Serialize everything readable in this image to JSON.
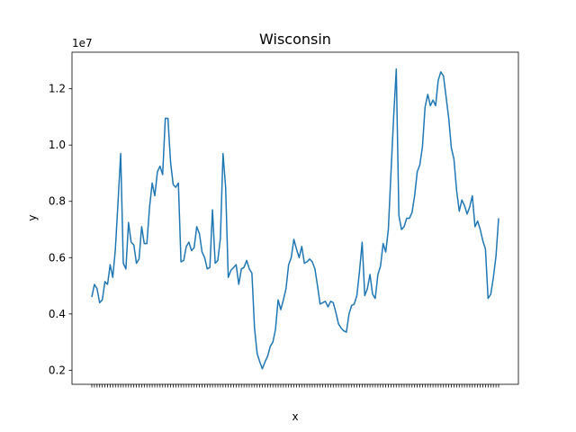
{
  "chart_data": {
    "type": "line",
    "title": "Wisconsin",
    "xlabel": "x",
    "ylabel": "y",
    "y_scale_label": "1e7",
    "ylim": [
      1500000,
      13300000
    ],
    "yticks": [
      2000000,
      4000000,
      6000000,
      8000000,
      10000000,
      12000000
    ],
    "ytick_labels": [
      "0.2",
      "0.4",
      "0.6",
      "0.8",
      "1.0",
      "1.2"
    ],
    "grid": false,
    "line_color": "#1f77b4",
    "series": [
      {
        "values": [
          4600000,
          5050000,
          4900000,
          4400000,
          4500000,
          5150000,
          5050000,
          5750000,
          5300000,
          6300000,
          8000000,
          9700000,
          5800000,
          5600000,
          7250000,
          6550000,
          6450000,
          5800000,
          5950000,
          7100000,
          6500000,
          6500000,
          7800000,
          8650000,
          8200000,
          9050000,
          9250000,
          8950000,
          10950000,
          10950000,
          9400000,
          8600000,
          8500000,
          8650000,
          5850000,
          5900000,
          6400000,
          6550000,
          6250000,
          6350000,
          7100000,
          6850000,
          6200000,
          6000000,
          5600000,
          5650000,
          7700000,
          5800000,
          5900000,
          6700000,
          9700000,
          8500000,
          5300000,
          5550000,
          5650000,
          5750000,
          5050000,
          5600000,
          5650000,
          5900000,
          5600000,
          5450000,
          3500000,
          2600000,
          2300000,
          2050000,
          2300000,
          2500000,
          2850000,
          3000000,
          3450000,
          4500000,
          4150000,
          4500000,
          4900000,
          5750000,
          6000000,
          6650000,
          6300000,
          6000000,
          6400000,
          5800000,
          5850000,
          5950000,
          5850000,
          5600000,
          5000000,
          4350000,
          4400000,
          4450000,
          4250000,
          4450000,
          4400000,
          4050000,
          3650000,
          3500000,
          3400000,
          3350000,
          4000000,
          4300000,
          4350000,
          4650000,
          5500000,
          6550000,
          4650000,
          4900000,
          5400000,
          4700000,
          4550000,
          5400000,
          5700000,
          6500000,
          6200000,
          7000000,
          9000000,
          11000000,
          12700000,
          7500000,
          7000000,
          7100000,
          7400000,
          7400000,
          7600000,
          8200000,
          9050000,
          9300000,
          9950000,
          11350000,
          11800000,
          11400000,
          11600000,
          11400000,
          12300000,
          12600000,
          12450000,
          11700000,
          10950000,
          9900000,
          9500000,
          8400000,
          7650000,
          8050000,
          7850000,
          7550000,
          7800000,
          8200000,
          7100000,
          7300000,
          7000000,
          6600000,
          6300000,
          4550000,
          4700000,
          5300000,
          6050000,
          7400000
        ]
      }
    ]
  }
}
